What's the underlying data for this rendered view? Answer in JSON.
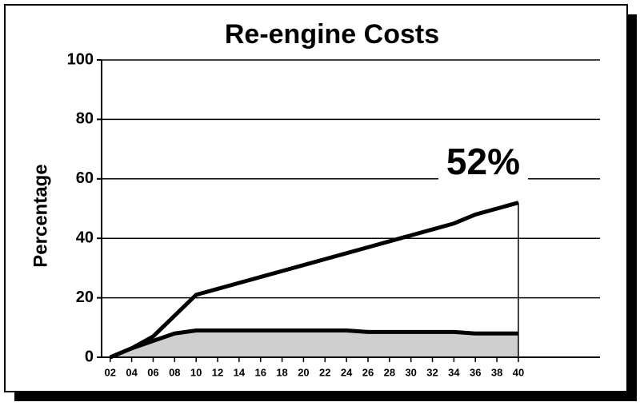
{
  "chart_data": {
    "type": "area",
    "title": "Re-engine Costs",
    "ylabel": "Percentage",
    "annotation": "52%",
    "x": [
      2,
      4,
      6,
      8,
      10,
      12,
      14,
      16,
      18,
      20,
      22,
      24,
      26,
      28,
      30,
      32,
      34,
      36,
      38,
      40
    ],
    "series": [
      {
        "color": "#000000",
        "fill": "#ffffff",
        "values": [
          0,
          3,
          7,
          14,
          21,
          23,
          25,
          27,
          29,
          31,
          33,
          35,
          37,
          39,
          41,
          43,
          45,
          48,
          50,
          52
        ]
      },
      {
        "color": "#000000",
        "fill": "#cfcfcf",
        "values": [
          0,
          3,
          5.5,
          8,
          9,
          9,
          9,
          9,
          9,
          9,
          9,
          9,
          8.5,
          8.5,
          8.5,
          8.5,
          8.5,
          8,
          8,
          8
        ]
      }
    ],
    "xlim": [
      1.2,
      47.6
    ],
    "xticks": [
      {
        "value": 2,
        "label": "02"
      },
      {
        "value": 4,
        "label": "04"
      },
      {
        "value": 6,
        "label": "06"
      },
      {
        "value": 8,
        "label": "08"
      },
      10,
      12,
      14,
      16,
      18,
      20,
      22,
      24,
      26,
      28,
      30,
      32,
      34,
      36,
      38,
      40
    ],
    "ylim": [
      0,
      100
    ],
    "yticks": [
      0,
      20,
      40,
      60,
      80,
      100
    ],
    "grid": true
  }
}
